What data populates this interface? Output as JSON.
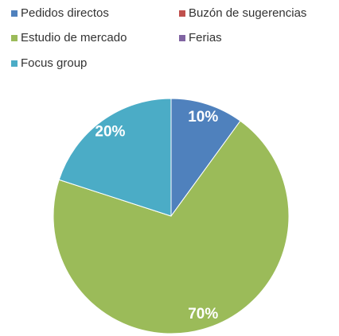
{
  "chart_data": {
    "type": "pie",
    "categories": [
      "Pedidos directos",
      "Buzón de sugerencias",
      "Estudio de mercado",
      "Ferias",
      "Focus group"
    ],
    "values": [
      10,
      0,
      70,
      0,
      20
    ],
    "value_labels": [
      "10%",
      null,
      "70%",
      null,
      "20%"
    ],
    "colors": [
      "#4f81bd",
      "#c0504d",
      "#9bbb59",
      "#8064a2",
      "#4bacc6"
    ],
    "legend": "top"
  }
}
